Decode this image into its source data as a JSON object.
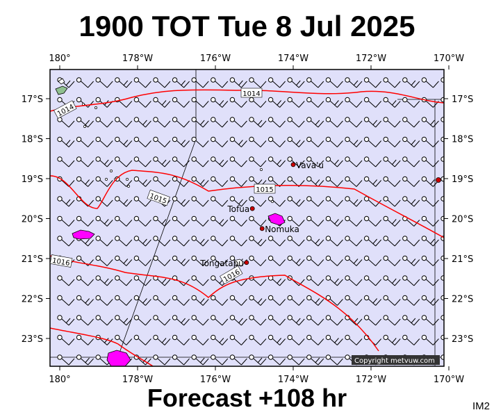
{
  "header": {
    "title": "1900 TOT Tue 8 Jul 2025"
  },
  "footer": {
    "forecast": "Forecast +108 hr",
    "product_code": "IM2"
  },
  "map": {
    "copyright": "Copyright metvuw.com",
    "colors": {
      "ocean": "#e0e0fa",
      "isobar": "#ff0000",
      "land": "#90c090",
      "highlight": "#ff00ff",
      "town": "#cc0000"
    },
    "x_ticks": [
      {
        "lon": 180,
        "label": "180°"
      },
      {
        "lon": -178,
        "label": "178°W"
      },
      {
        "lon": -176,
        "label": "176°W"
      },
      {
        "lon": -174,
        "label": "174°W"
      },
      {
        "lon": -172,
        "label": "172°W"
      },
      {
        "lon": -170,
        "label": "170°W"
      }
    ],
    "y_ticks": [
      {
        "lat": -17,
        "label": "17°S"
      },
      {
        "lat": -18,
        "label": "18°S"
      },
      {
        "lat": -19,
        "label": "19°S"
      },
      {
        "lat": -20,
        "label": "20°S"
      },
      {
        "lat": -21,
        "label": "21°S"
      },
      {
        "lat": -22,
        "label": "22°S"
      },
      {
        "lat": -23,
        "label": "23°S"
      }
    ],
    "places": [
      {
        "name": "Vava'u",
        "lon": -174.0,
        "lat": -18.65
      },
      {
        "name": "Tofua",
        "lon": -175.05,
        "lat": -19.75
      },
      {
        "name": "Nomuka",
        "lon": -174.8,
        "lat": -20.25
      },
      {
        "name": "Tongatapu",
        "lon": -175.2,
        "lat": -21.1
      }
    ],
    "isobars": [
      {
        "label": "1014"
      },
      {
        "label": "1015"
      },
      {
        "label": "1016"
      }
    ]
  }
}
